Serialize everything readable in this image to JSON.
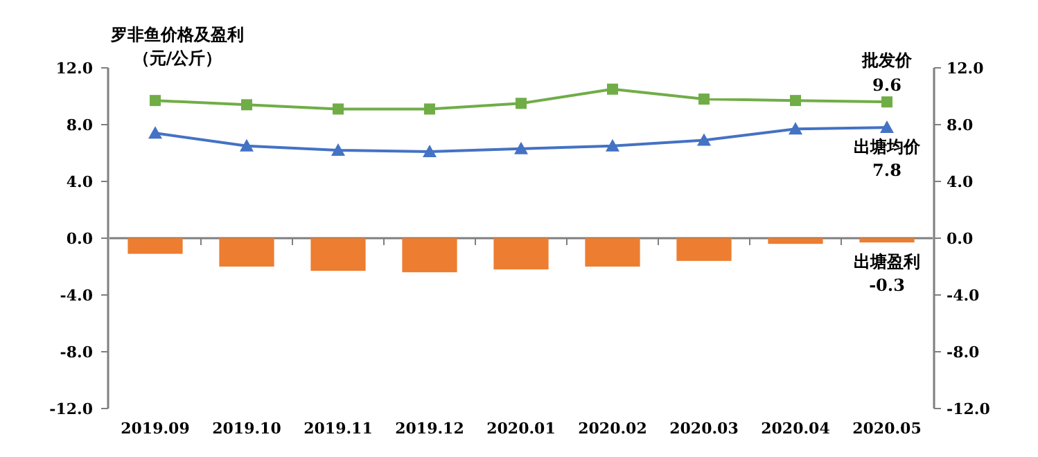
{
  "chart_data": {
    "type": "bar",
    "title": "罗非鱼价格及盈利",
    "ylabel": "（元/公斤）",
    "categories": [
      "2019.09",
      "2019.10",
      "2019.11",
      "2019.12",
      "2020.01",
      "2020.02",
      "2020.03",
      "2020.04",
      "2020.05"
    ],
    "series": [
      {
        "name": "批发价",
        "type": "line",
        "color": "#70ad47",
        "marker": "square",
        "values": [
          9.7,
          9.4,
          9.1,
          9.1,
          9.5,
          10.5,
          9.8,
          9.7,
          9.6
        ],
        "value_labels": [
          null,
          null,
          null,
          null,
          null,
          null,
          null,
          null,
          "9.6"
        ]
      },
      {
        "name": "出塘均价",
        "type": "line",
        "color": "#4472c4",
        "marker": "triangle",
        "values": [
          7.4,
          6.5,
          6.2,
          6.1,
          6.3,
          6.5,
          6.9,
          7.7,
          7.8
        ],
        "value_labels": [
          null,
          null,
          null,
          null,
          null,
          null,
          null,
          null,
          "7.8"
        ]
      },
      {
        "name": "出塘盈利",
        "type": "bar",
        "color": "#ed7d31",
        "values": [
          -1.1,
          -2.0,
          -2.3,
          -2.4,
          -2.2,
          -2.0,
          -1.6,
          -0.4,
          -0.3
        ],
        "value_labels": [
          null,
          null,
          null,
          null,
          null,
          null,
          null,
          null,
          "-0.3"
        ]
      }
    ],
    "ylim": [
      -12,
      12
    ],
    "yticks": [
      {
        "value": -12,
        "label": "-12.0"
      },
      {
        "value": -8,
        "label": "-8.0"
      },
      {
        "value": -4,
        "label": "-4.0"
      },
      {
        "value": 0,
        "label": "0.0"
      },
      {
        "value": 4,
        "label": "4.0"
      },
      {
        "value": 8,
        "label": "8.0"
      },
      {
        "value": 12,
        "label": "12.0"
      }
    ],
    "y2lim": [
      -12,
      12
    ],
    "y2ticks": [
      {
        "value": -12,
        "label": "-12.0"
      },
      {
        "value": -8,
        "label": "-8.0"
      },
      {
        "value": -4,
        "label": "-4.0"
      },
      {
        "value": 0,
        "label": "0.0"
      },
      {
        "value": 4,
        "label": "4.0"
      },
      {
        "value": 8,
        "label": "8.0"
      },
      {
        "value": 12,
        "label": "12.0"
      }
    ],
    "tick_labels": "xy"
  }
}
